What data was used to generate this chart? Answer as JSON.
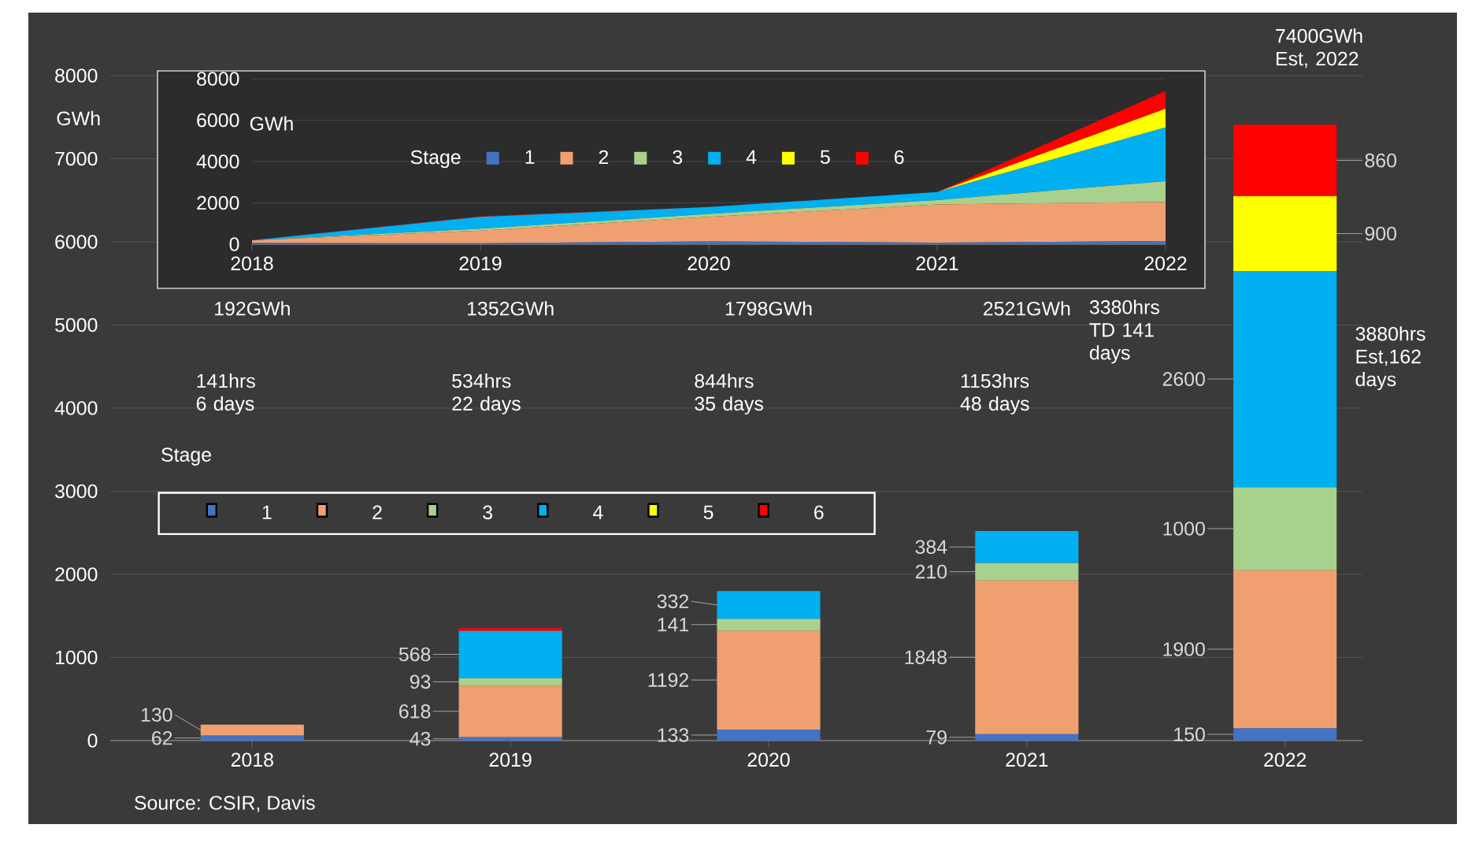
{
  "chart_data": [
    {
      "type": "bar",
      "stacked": true,
      "categories": [
        "2018",
        "2019",
        "2020",
        "2021",
        "2022"
      ],
      "ylim": [
        0,
        8000
      ],
      "yticks": [
        0,
        1000,
        2000,
        3000,
        4000,
        5000,
        6000,
        7000,
        8000
      ],
      "ylabel": "GWh",
      "grid": "y",
      "legend": "left",
      "legend_title": "Stage",
      "series": [
        {
          "name": "1",
          "color": "#4472c4",
          "values": [
            62,
            43,
            133,
            79,
            150
          ],
          "value_labels": [
            "62",
            "43",
            "133",
            "79",
            "150"
          ]
        },
        {
          "name": "2",
          "color": "#f0a070",
          "values": [
            130,
            618,
            1192,
            1848,
            1900
          ],
          "value_labels": [
            "130",
            "618",
            "1192",
            "1848",
            "1900"
          ]
        },
        {
          "name": "3",
          "color": "#a9d18e",
          "values": [
            null,
            93,
            141,
            210,
            1000
          ],
          "value_labels": [
            null,
            "93",
            "141",
            "210",
            "1000"
          ]
        },
        {
          "name": "4",
          "color": "#00b0f0",
          "values": [
            null,
            568,
            332,
            384,
            2600
          ],
          "value_labels": [
            null,
            "568",
            "332",
            "384",
            "2600"
          ]
        },
        {
          "name": "5",
          "color": "#ffff00",
          "values": [
            null,
            null,
            null,
            null,
            900
          ],
          "value_labels": [
            null,
            null,
            null,
            null,
            "900"
          ]
        },
        {
          "name": "6",
          "color": "#ff0000",
          "values": [
            null,
            30,
            null,
            null,
            860
          ],
          "value_labels": [
            null,
            null,
            null,
            null,
            "860"
          ]
        }
      ],
      "annotations": [
        "192GWh",
        "1352GWh",
        "1798GWh",
        "2521GWh",
        "141hrs 6 days",
        "534hrs 22 days",
        "844hrs 35 days",
        "1153hrs 48 days",
        "3380hrs TD 141 days",
        "3880hrs Est,162 days",
        "7400GWh Est, 2022",
        "Source: CSIR, Davis"
      ]
    },
    {
      "type": "area",
      "stacked": true,
      "categories": [
        "2018",
        "2019",
        "2020",
        "2021",
        "2022"
      ],
      "ylim": [
        0,
        8000
      ],
      "yticks": [
        0,
        2000,
        4000,
        6000,
        8000
      ],
      "ylabel": "GWh",
      "grid": "y",
      "legend": "left",
      "legend_title": "Stage",
      "series": [
        {
          "name": "1",
          "color": "#4472c4",
          "values": [
            62,
            43,
            133,
            79,
            150
          ]
        },
        {
          "name": "2",
          "color": "#f0a070",
          "values": [
            130,
            618,
            1192,
            1848,
            1900
          ]
        },
        {
          "name": "3",
          "color": "#a9d18e",
          "values": [
            0,
            93,
            141,
            210,
            1000
          ]
        },
        {
          "name": "4",
          "color": "#00b0f0",
          "values": [
            0,
            568,
            332,
            384,
            2600
          ]
        },
        {
          "name": "5",
          "color": "#ffff00",
          "values": [
            0,
            0,
            0,
            0,
            900
          ]
        },
        {
          "name": "6",
          "color": "#ff0000",
          "values": [
            0,
            30,
            0,
            0,
            860
          ]
        }
      ]
    }
  ]
}
